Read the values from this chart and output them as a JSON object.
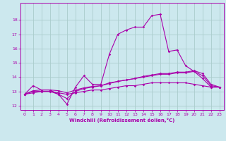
{
  "xlabel": "Windchill (Refroidissement éolien,°C)",
  "background_color": "#cce8ee",
  "grid_color": "#aacccc",
  "line_color": "#aa00aa",
  "xlim": [
    -0.5,
    23.5
  ],
  "ylim": [
    11.7,
    19.2
  ],
  "xticks": [
    0,
    1,
    2,
    3,
    4,
    5,
    6,
    7,
    8,
    9,
    10,
    11,
    12,
    13,
    14,
    15,
    16,
    17,
    18,
    19,
    20,
    21,
    22,
    23
  ],
  "yticks": [
    12,
    13,
    14,
    15,
    16,
    17,
    18
  ],
  "series": {
    "line1": {
      "x": [
        0,
        1,
        2,
        3,
        4,
        5,
        6,
        7,
        8,
        9,
        10,
        11,
        12,
        13,
        14,
        15,
        16,
        17,
        18,
        19,
        20,
        21,
        22,
        23
      ],
      "y": [
        12.8,
        13.4,
        13.1,
        13.1,
        12.8,
        12.1,
        13.3,
        14.1,
        13.5,
        13.5,
        15.6,
        17.0,
        17.3,
        17.5,
        17.5,
        18.3,
        18.4,
        15.8,
        15.9,
        14.8,
        14.4,
        13.9,
        13.3,
        13.3
      ]
    },
    "line2": {
      "x": [
        0,
        1,
        2,
        3,
        4,
        5,
        6,
        7,
        8,
        9,
        10,
        11,
        12,
        13,
        14,
        15,
        16,
        17,
        18,
        19,
        20,
        21,
        22,
        23
      ],
      "y": [
        12.8,
        13.0,
        13.0,
        13.0,
        12.8,
        12.5,
        13.0,
        13.2,
        13.3,
        13.4,
        13.6,
        13.7,
        13.8,
        13.9,
        14.0,
        14.1,
        14.2,
        14.2,
        14.3,
        14.3,
        14.4,
        14.1,
        13.4,
        13.3
      ]
    },
    "line3": {
      "x": [
        0,
        1,
        2,
        3,
        4,
        5,
        6,
        7,
        8,
        9,
        10,
        11,
        12,
        13,
        14,
        15,
        16,
        17,
        18,
        19,
        20,
        21,
        22,
        23
      ],
      "y": [
        12.8,
        12.9,
        13.0,
        13.0,
        12.9,
        12.8,
        12.9,
        13.0,
        13.1,
        13.1,
        13.2,
        13.3,
        13.4,
        13.4,
        13.5,
        13.6,
        13.6,
        13.6,
        13.6,
        13.6,
        13.5,
        13.4,
        13.3,
        13.3
      ]
    },
    "line4": {
      "x": [
        0,
        1,
        2,
        3,
        4,
        5,
        6,
        7,
        8,
        9,
        10,
        11,
        12,
        13,
        14,
        15,
        16,
        17,
        18,
        19,
        20,
        21,
        22,
        23
      ],
      "y": [
        12.8,
        13.05,
        13.1,
        13.1,
        13.05,
        12.9,
        13.1,
        13.25,
        13.35,
        13.4,
        13.55,
        13.7,
        13.8,
        13.9,
        14.05,
        14.15,
        14.25,
        14.25,
        14.35,
        14.35,
        14.45,
        14.25,
        13.5,
        13.3
      ]
    }
  }
}
